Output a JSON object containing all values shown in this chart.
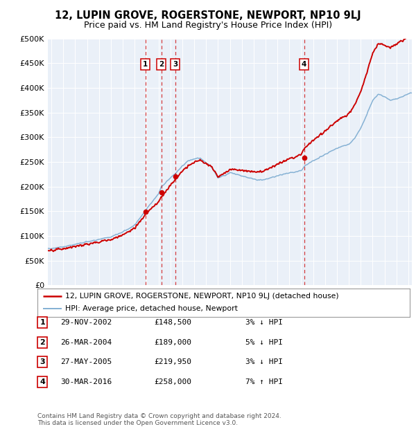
{
  "title": "12, LUPIN GROVE, ROGERSTONE, NEWPORT, NP10 9LJ",
  "subtitle": "Price paid vs. HM Land Registry's House Price Index (HPI)",
  "ylabel_ticks": [
    "£0",
    "£50K",
    "£100K",
    "£150K",
    "£200K",
    "£250K",
    "£300K",
    "£350K",
    "£400K",
    "£450K",
    "£500K"
  ],
  "ytick_values": [
    0,
    50000,
    100000,
    150000,
    200000,
    250000,
    300000,
    350000,
    400000,
    450000,
    500000
  ],
  "xlim_start": 1994.7,
  "xlim_end": 2025.3,
  "ylim": [
    0,
    500000
  ],
  "sale_points": [
    {
      "label": "1",
      "date_num": 2002.91,
      "price": 148500
    },
    {
      "label": "2",
      "date_num": 2004.23,
      "price": 189000
    },
    {
      "label": "3",
      "date_num": 2005.4,
      "price": 219950
    },
    {
      "label": "4",
      "date_num": 2016.24,
      "price": 258000
    }
  ],
  "legend_entries": [
    {
      "label": "12, LUPIN GROVE, ROGERSTONE, NEWPORT, NP10 9LJ (detached house)",
      "color": "#cc0000",
      "lw": 1.8
    },
    {
      "label": "HPI: Average price, detached house, Newport",
      "color": "#7aaad0",
      "lw": 1.3
    }
  ],
  "table_rows": [
    {
      "num": "1",
      "date": "29-NOV-2002",
      "price": "£148,500",
      "hpi": "3% ↓ HPI"
    },
    {
      "num": "2",
      "date": "26-MAR-2004",
      "price": "£189,000",
      "hpi": "5% ↓ HPI"
    },
    {
      "num": "3",
      "date": "27-MAY-2005",
      "price": "£219,950",
      "hpi": "3% ↓ HPI"
    },
    {
      "num": "4",
      "date": "30-MAR-2016",
      "price": "£258,000",
      "hpi": "7% ↑ HPI"
    }
  ],
  "footnote": "Contains HM Land Registry data © Crown copyright and database right 2024.\nThis data is licensed under the Open Government Licence v3.0.",
  "plot_bg": "#eaf0f8",
  "grid_color": "#ffffff",
  "sale_line_color": "#cc0000",
  "hpi_line_color": "#7aaad0"
}
